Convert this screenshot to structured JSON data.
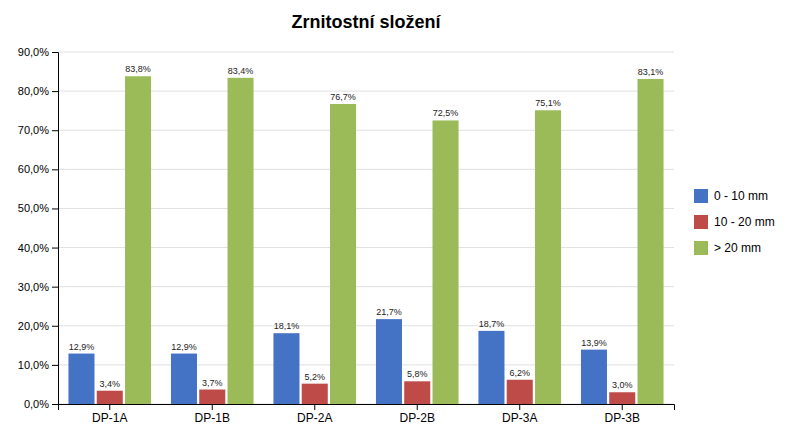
{
  "chart_data": {
    "type": "bar",
    "title": "Zrnitostní složení",
    "categories": [
      "DP-1A",
      "DP-1B",
      "DP-2A",
      "DP-2B",
      "DP-3A",
      "DP-3B"
    ],
    "series": [
      {
        "name": "0 - 10 mm",
        "color": "#4472C4",
        "values": [
          12.9,
          12.9,
          18.1,
          21.7,
          18.7,
          13.9
        ],
        "value_labels": [
          "12,9%",
          "12,9%",
          "18,1%",
          "21,7%",
          "18,7%",
          "13,9%"
        ]
      },
      {
        "name": "10 - 20 mm",
        "color": "#BE4B48",
        "values": [
          3.4,
          3.7,
          5.2,
          5.8,
          6.2,
          3.0
        ],
        "value_labels": [
          "3,4%",
          "3,7%",
          "5,2%",
          "5,8%",
          "6,2%",
          "3,0%"
        ]
      },
      {
        "name": "> 20 mm",
        "color": "#9BBB59",
        "values": [
          83.8,
          83.4,
          76.7,
          72.5,
          75.1,
          83.1
        ],
        "value_labels": [
          "83,8%",
          "83,4%",
          "76,7%",
          "72,5%",
          "75,1%",
          "83,1%"
        ]
      }
    ],
    "ylim": [
      0,
      90
    ],
    "yticks": [
      {
        "value": 0,
        "label": "0,0%"
      },
      {
        "value": 10,
        "label": "10,0%"
      },
      {
        "value": 20,
        "label": "20,0%"
      },
      {
        "value": 30,
        "label": "30,0%"
      },
      {
        "value": 40,
        "label": "40,0%"
      },
      {
        "value": 50,
        "label": "50,0%"
      },
      {
        "value": 60,
        "label": "60,0%"
      },
      {
        "value": 70,
        "label": "70,0%"
      },
      {
        "value": 80,
        "label": "80,0%"
      },
      {
        "value": 90,
        "label": "90,0%"
      }
    ],
    "grid": true,
    "data_labels": true,
    "legend": "right"
  }
}
